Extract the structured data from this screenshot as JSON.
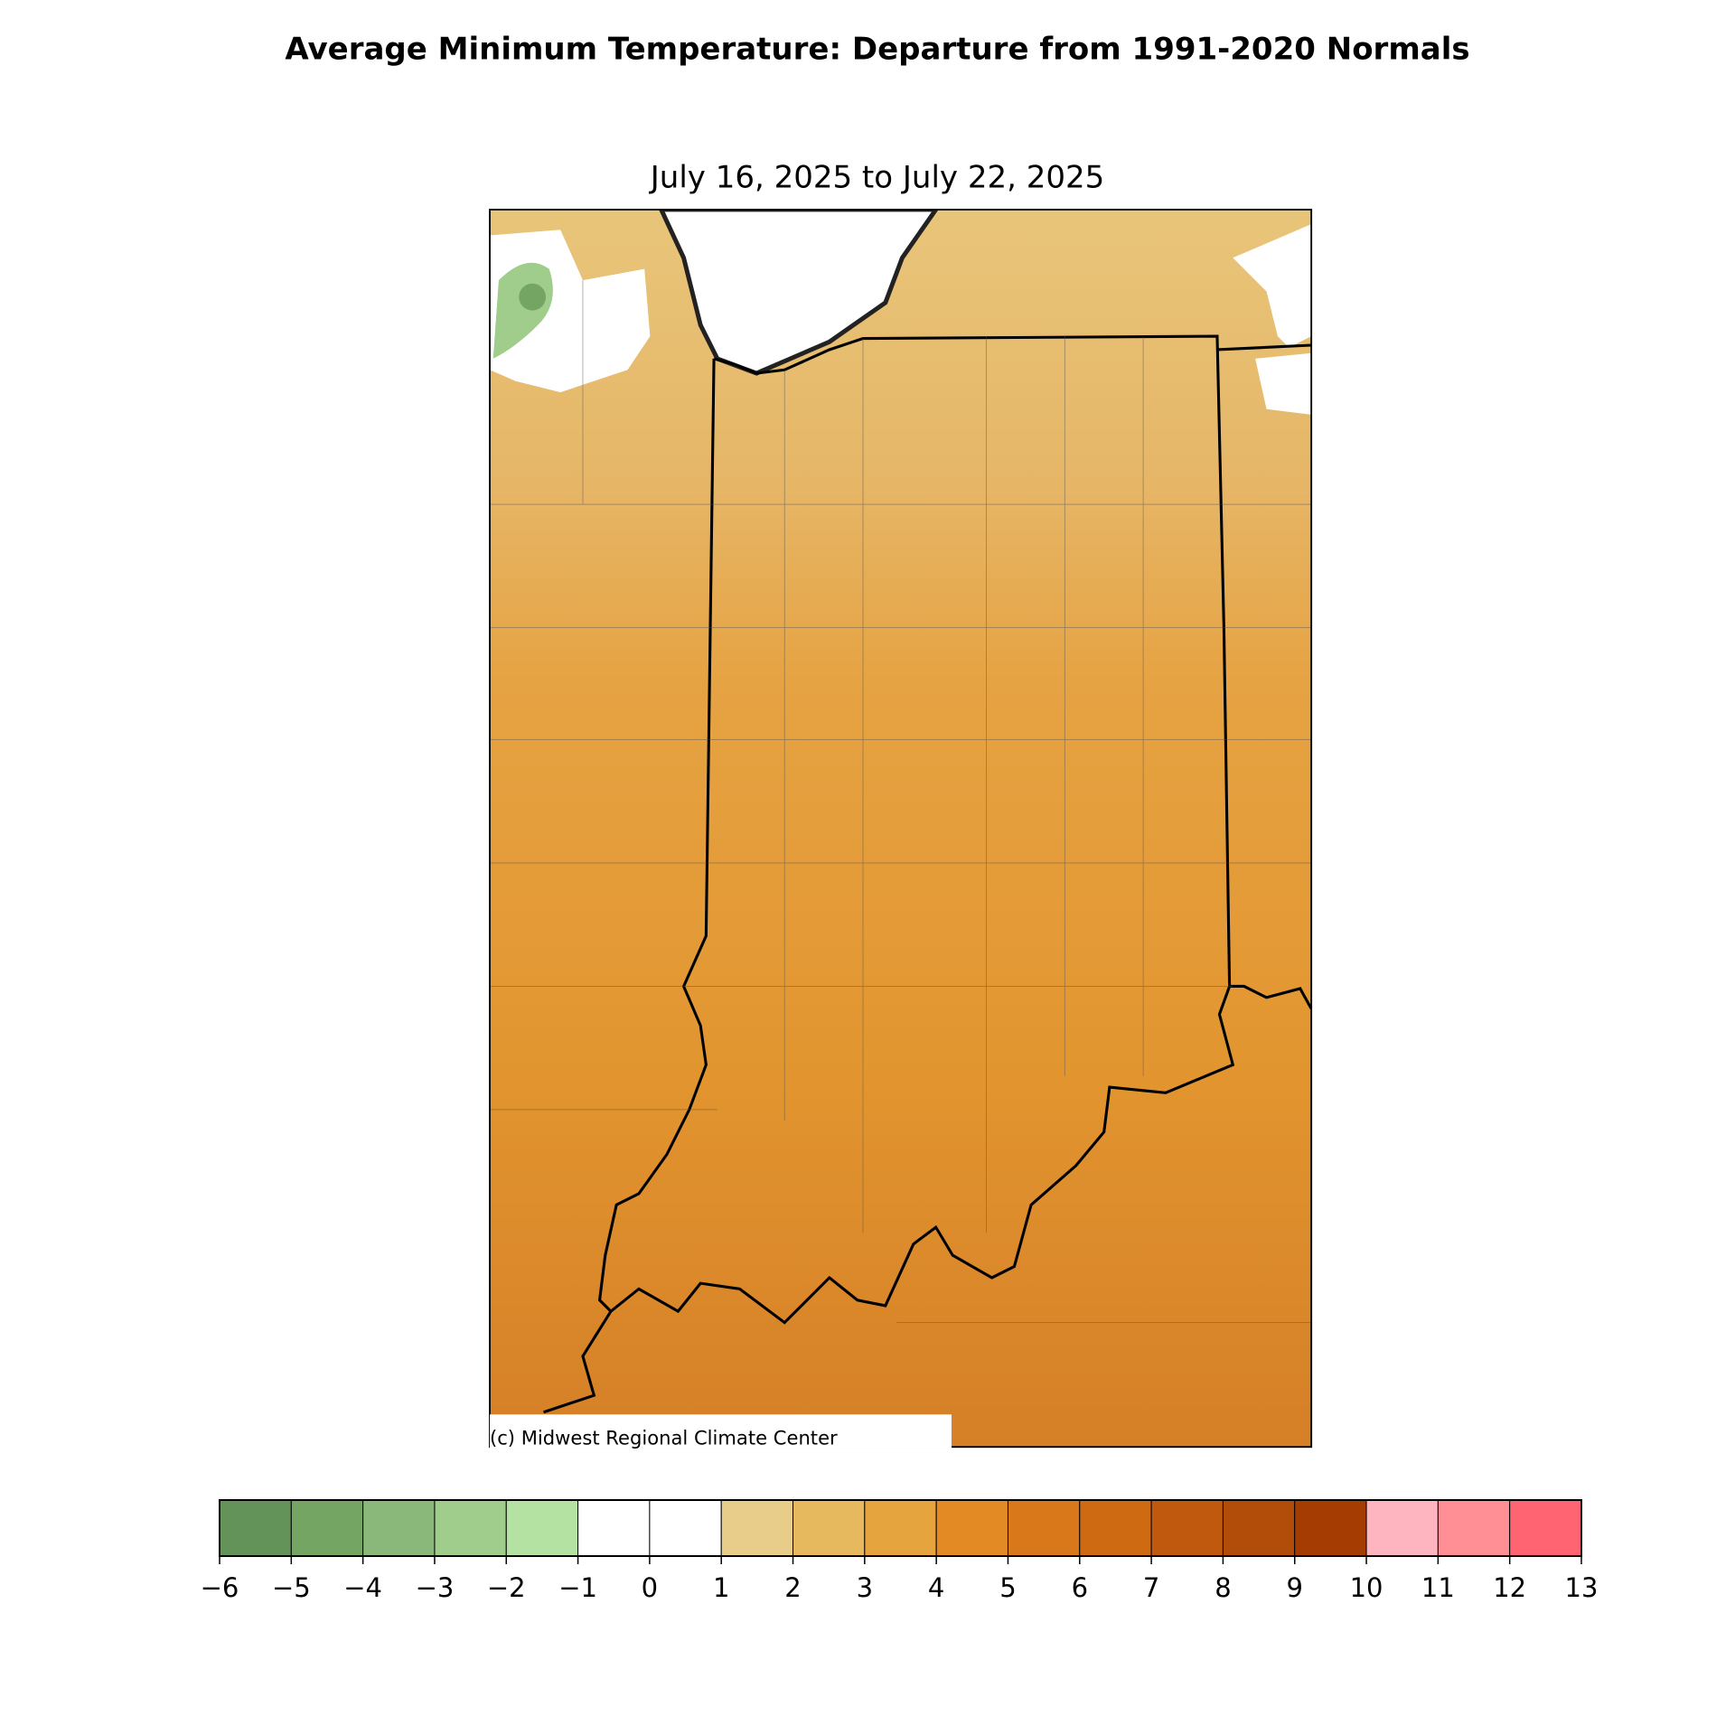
{
  "title": "Average Minimum Temperature: Departure from 1991-2020 Normals",
  "subtitle": "July 16, 2025 to July 22, 2025",
  "credit": "(c) Midwest Regional Climate Center",
  "colorbar": {
    "ticks": [
      {
        "value": -6,
        "label": "−6"
      },
      {
        "value": -5,
        "label": "−5"
      },
      {
        "value": -4,
        "label": "−4"
      },
      {
        "value": -3,
        "label": "−3"
      },
      {
        "value": -2,
        "label": "−2"
      },
      {
        "value": -1,
        "label": "−1"
      },
      0,
      1,
      2,
      3,
      4,
      5,
      6,
      7,
      8,
      9,
      10,
      11,
      12,
      13
    ],
    "colors": [
      "#64935a",
      "#74a562",
      "#8ab87a",
      "#a0cc8c",
      "#b3e2a2",
      "#ffffff",
      "#ffffff",
      "#e8cd8a",
      "#e7b95e",
      "#e6a43e",
      "#e38a25",
      "#d9781a",
      "#cd6a12",
      "#c0590d",
      "#b14d08",
      "#a53d02",
      "#ffb5c0",
      "#ff8f95",
      "#ff6472"
    ]
  }
}
